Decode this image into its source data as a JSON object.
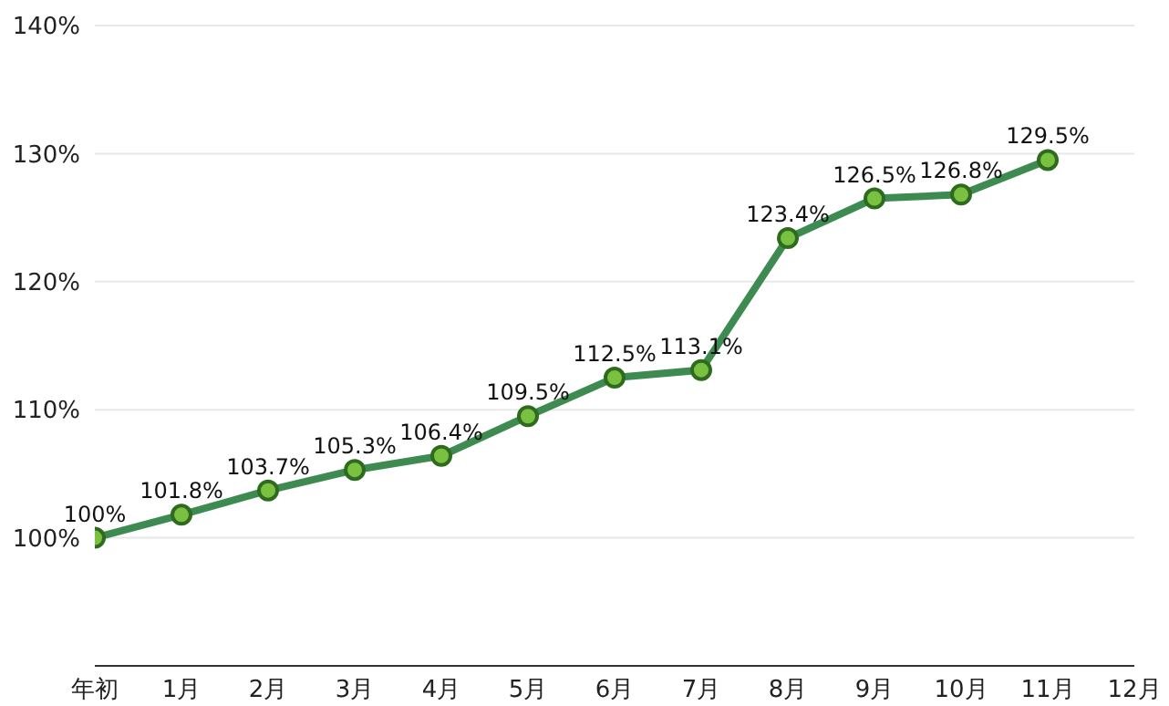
{
  "chart_data": {
    "type": "line",
    "categories": [
      "年初",
      "1月",
      "2月",
      "3月",
      "4月",
      "5月",
      "6月",
      "7月",
      "8月",
      "9月",
      "10月",
      "11月",
      "12月"
    ],
    "series": [
      {
        "color": "#3d8b50",
        "values": [
          100,
          101.8,
          103.7,
          105.3,
          106.4,
          109.5,
          112.5,
          113.1,
          123.4,
          126.5,
          126.8,
          129.5,
          null
        ],
        "value_labels": [
          "100%",
          "101.8%",
          "103.7%",
          "105.3%",
          "106.4%",
          "109.5%",
          "112.5%",
          "113.1%",
          "123.4%",
          "126.5%",
          "126.8%",
          "129.5%",
          null
        ]
      }
    ],
    "ylim": [
      90,
      140
    ],
    "yticks": [
      {
        "value": 100,
        "label": "100%"
      },
      {
        "value": 110,
        "label": "110%"
      },
      {
        "value": 120,
        "label": "120%"
      },
      {
        "value": 130,
        "label": "130%"
      },
      {
        "value": 140,
        "label": "140%"
      }
    ],
    "grid": "y",
    "marker": "circle",
    "line_style": "solid"
  }
}
